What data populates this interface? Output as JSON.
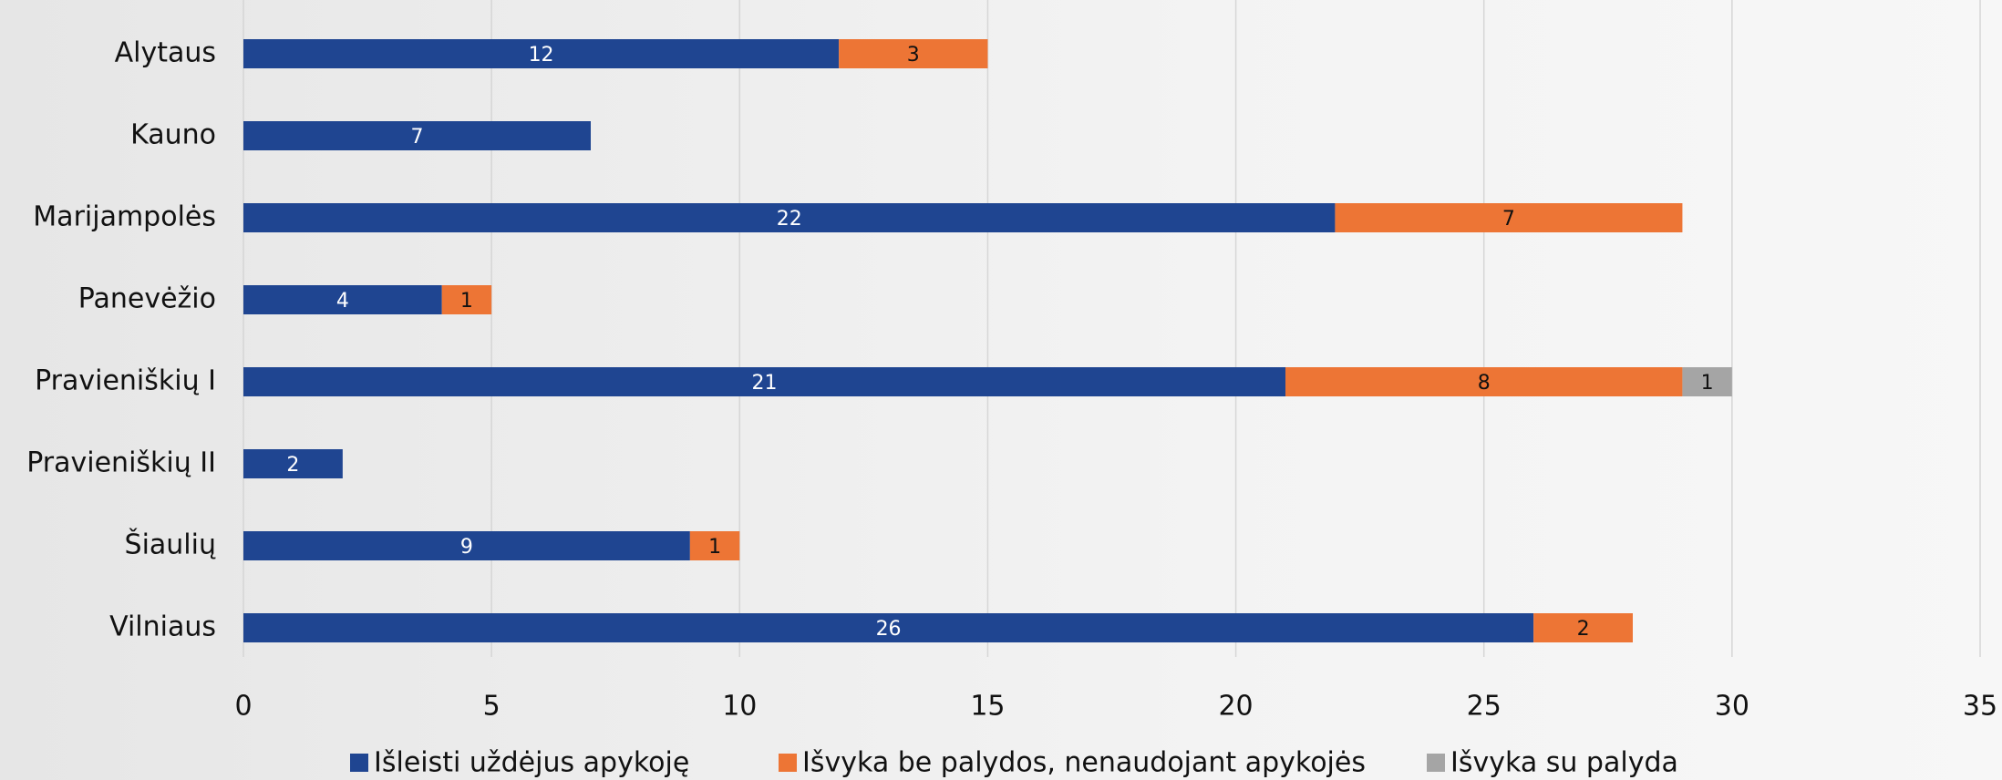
{
  "chart_data": {
    "type": "bar",
    "orientation": "horizontal",
    "stacked": true,
    "categories": [
      "Alytaus",
      "Kauno",
      "Marijampolės",
      "Panevėžio",
      "Pravieniškių I",
      "Pravieniškių II",
      "Šiaulių",
      "Vilniaus"
    ],
    "series": [
      {
        "name": "Išleisti uždėjus apykoję",
        "color": "#1f4591",
        "values": [
          12,
          7,
          22,
          4,
          21,
          2,
          9,
          26
        ]
      },
      {
        "name": "Išvyka be palydos, nenaudojant apykojės",
        "color": "#ed7535",
        "values": [
          3,
          null,
          7,
          1,
          8,
          null,
          1,
          2
        ]
      },
      {
        "name": "Išvyka su palyda",
        "color": "#a5a5a5",
        "values": [
          null,
          null,
          null,
          null,
          1,
          null,
          null,
          null
        ]
      }
    ],
    "xlim": [
      0,
      35
    ],
    "xticks": [
      0,
      5,
      10,
      15,
      20,
      25,
      30,
      35
    ],
    "grid": true,
    "legend": "bottom"
  }
}
